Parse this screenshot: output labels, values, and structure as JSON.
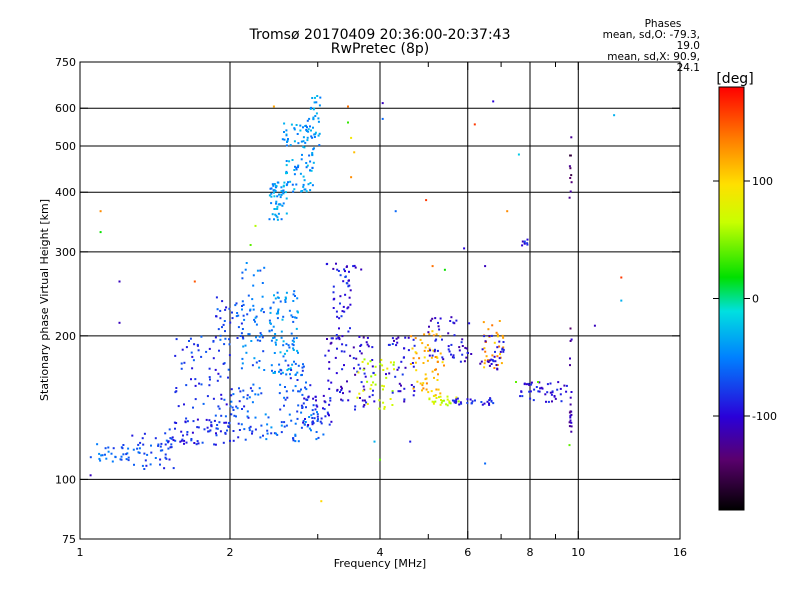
{
  "chart_data": {
    "type": "scatter",
    "title": "Tromsø 20170409 20:36:00-20:37:43",
    "subtitle": "RwPretec (8p)",
    "xlabel": "Frequency [MHz]",
    "ylabel": "Stationary phase Virtual Height [km]",
    "x_scale": "log",
    "y_scale": "log",
    "xlim": [
      1,
      16
    ],
    "ylim": [
      75,
      750
    ],
    "x_ticks": [
      1,
      2,
      4,
      6,
      8,
      10,
      16
    ],
    "x_tick_labels": [
      "1",
      "2",
      "4",
      "6",
      "8",
      "10",
      "16"
    ],
    "x_minor_ticks": [
      3,
      5,
      7,
      9
    ],
    "y_ticks": [
      75,
      100,
      200,
      300,
      400,
      500,
      600,
      750
    ],
    "y_tick_labels": [
      "75",
      "100",
      "200",
      "300",
      "400",
      "500",
      "600",
      "750"
    ],
    "grid": true,
    "colorbar": {
      "label": "[deg]",
      "range": [
        -180,
        180
      ],
      "ticks": [
        100,
        0,
        -100
      ],
      "tick_labels": [
        "100",
        "0",
        "-100"
      ]
    },
    "stats": {
      "header": "Phases",
      "line_o": "mean, sd,O: -79.3, 19.0",
      "line_x": "mean, sd,X: 90.9, 24.1"
    },
    "clusters": [
      {
        "f": [
          1.05,
          1.25
        ],
        "h": [
          108,
          120
        ],
        "phase": -60,
        "n": 28
      },
      {
        "f": [
          1.25,
          1.55
        ],
        "h": [
          105,
          125
        ],
        "phase": -75,
        "n": 45
      },
      {
        "f": [
          1.5,
          2.0
        ],
        "h": [
          118,
          135
        ],
        "phase": -85,
        "n": 70
      },
      {
        "f": [
          1.55,
          2.0
        ],
        "h": [
          135,
          200
        ],
        "phase": -80,
        "n": 65
      },
      {
        "f": [
          1.85,
          2.15
        ],
        "h": [
          195,
          245
        ],
        "phase": -75,
        "n": 40
      },
      {
        "f": [
          2.0,
          2.3
        ],
        "h": [
          120,
          160
        ],
        "phase": -70,
        "n": 45
      },
      {
        "f": [
          2.1,
          2.35
        ],
        "h": [
          150,
          285
        ],
        "phase": -55,
        "n": 55
      },
      {
        "f": [
          2.4,
          2.75
        ],
        "h": [
          165,
          250
        ],
        "phase": -45,
        "n": 90
      },
      {
        "f": [
          2.4,
          2.6
        ],
        "h": [
          350,
          420
        ],
        "phase": -40,
        "n": 55
      },
      {
        "f": [
          2.55,
          2.95
        ],
        "h": [
          400,
          560
        ],
        "phase": -40,
        "n": 90
      },
      {
        "f": [
          2.85,
          3.05
        ],
        "h": [
          500,
          640
        ],
        "phase": -40,
        "n": 35
      },
      {
        "f": [
          2.3,
          3.1
        ],
        "h": [
          120,
          140
        ],
        "phase": -60,
        "n": 55
      },
      {
        "f": [
          2.5,
          2.9
        ],
        "h": [
          140,
          175
        ],
        "phase": -70,
        "n": 40
      },
      {
        "f": [
          2.8,
          3.2
        ],
        "h": [
          130,
          150
        ],
        "phase": -90,
        "n": 40
      },
      {
        "f": [
          3.1,
          3.9
        ],
        "h": [
          140,
          200
        ],
        "phase": -100,
        "n": 80
      },
      {
        "f": [
          3.2,
          3.5
        ],
        "h": [
          195,
          270
        ],
        "phase": -90,
        "n": 35
      },
      {
        "f": [
          3.6,
          4.3
        ],
        "h": [
          140,
          180
        ],
        "phase": 70,
        "n": 40
      },
      {
        "f": [
          4.1,
          4.7
        ],
        "h": [
          145,
          200
        ],
        "phase": -95,
        "n": 40
      },
      {
        "f": [
          4.6,
          5.4
        ],
        "h": [
          150,
          205
        ],
        "phase": 115,
        "n": 60
      },
      {
        "f": [
          5.0,
          6.1
        ],
        "h": [
          175,
          220
        ],
        "phase": -100,
        "n": 50
      },
      {
        "f": [
          5.0,
          5.8
        ],
        "h": [
          143,
          150
        ],
        "phase": 70,
        "n": 25
      },
      {
        "f": [
          5.6,
          6.8
        ],
        "h": [
          143,
          148
        ],
        "phase": -90,
        "n": 30
      },
      {
        "f": [
          6.4,
          7.1
        ],
        "h": [
          170,
          215
        ],
        "phase": 120,
        "n": 30
      },
      {
        "f": [
          6.3,
          7.1
        ],
        "h": [
          170,
          200
        ],
        "phase": -100,
        "n": 30
      },
      {
        "f": [
          7.6,
          9.5
        ],
        "h": [
          145,
          160
        ],
        "phase": -95,
        "n": 45
      },
      {
        "f": [
          9.6,
          9.7
        ],
        "h": [
          125,
          215
        ],
        "phase": -120,
        "n": 20
      },
      {
        "f": [
          9.6,
          9.7
        ],
        "h": [
          380,
          530
        ],
        "phase": -140,
        "n": 10
      },
      {
        "f": [
          7.7,
          8.0
        ],
        "h": [
          308,
          320
        ],
        "phase": -90,
        "n": 8
      },
      {
        "f": [
          3.1,
          3.7
        ],
        "h": [
          270,
          285
        ],
        "phase": -95,
        "n": 15
      }
    ],
    "points": [
      {
        "f": 1.1,
        "h": 365,
        "phase": 130
      },
      {
        "f": 1.1,
        "h": 330,
        "phase": 20
      },
      {
        "f": 1.2,
        "h": 260,
        "phase": -110
      },
      {
        "f": 1.2,
        "h": 213,
        "phase": -110
      },
      {
        "f": 1.05,
        "h": 102,
        "phase": -110
      },
      {
        "f": 1.7,
        "h": 260,
        "phase": 150
      },
      {
        "f": 2.2,
        "h": 310,
        "phase": 40
      },
      {
        "f": 2.25,
        "h": 340,
        "phase": 60
      },
      {
        "f": 2.45,
        "h": 605,
        "phase": 120
      },
      {
        "f": 3.05,
        "h": 90,
        "phase": 100
      },
      {
        "f": 3.45,
        "h": 605,
        "phase": 140
      },
      {
        "f": 3.5,
        "h": 520,
        "phase": 90
      },
      {
        "f": 3.55,
        "h": 485,
        "phase": 110
      },
      {
        "f": 3.5,
        "h": 430,
        "phase": 130
      },
      {
        "f": 3.45,
        "h": 560,
        "phase": 30
      },
      {
        "f": 4.05,
        "h": 615,
        "phase": -110
      },
      {
        "f": 4.05,
        "h": 570,
        "phase": -60
      },
      {
        "f": 4.3,
        "h": 365,
        "phase": -60
      },
      {
        "f": 4.95,
        "h": 385,
        "phase": 160
      },
      {
        "f": 5.1,
        "h": 280,
        "phase": 140
      },
      {
        "f": 5.4,
        "h": 275,
        "phase": 20
      },
      {
        "f": 5.9,
        "h": 305,
        "phase": -100
      },
      {
        "f": 6.2,
        "h": 555,
        "phase": 160
      },
      {
        "f": 6.75,
        "h": 620,
        "phase": -100
      },
      {
        "f": 6.5,
        "h": 280,
        "phase": -110
      },
      {
        "f": 6.5,
        "h": 108,
        "phase": -60
      },
      {
        "f": 7.2,
        "h": 365,
        "phase": 130
      },
      {
        "f": 7.6,
        "h": 480,
        "phase": -20
      },
      {
        "f": 4.0,
        "h": 110,
        "phase": 40
      },
      {
        "f": 3.9,
        "h": 120,
        "phase": -30
      },
      {
        "f": 4.6,
        "h": 120,
        "phase": -90
      },
      {
        "f": 9.6,
        "h": 118,
        "phase": 40
      },
      {
        "f": 11.8,
        "h": 580,
        "phase": -30
      },
      {
        "f": 12.2,
        "h": 265,
        "phase": 160
      },
      {
        "f": 12.2,
        "h": 237,
        "phase": -30
      },
      {
        "f": 10.8,
        "h": 210,
        "phase": -110
      },
      {
        "f": 7.5,
        "h": 160,
        "phase": 40
      },
      {
        "f": 8.3,
        "h": 160,
        "phase": 40
      }
    ]
  }
}
